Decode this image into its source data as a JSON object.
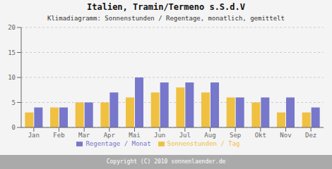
{
  "chart_data": {
    "type": "bar",
    "title": "Italien, Tramin/Termeno s.S.d.V",
    "subtitle": "Klimadiagramm: Sonnenstunden / Regentage, monatlich, gemittelt",
    "annotations": [
      "Copyright (C) 2010 sonnenlaender.de"
    ],
    "categories": [
      "Jan",
      "Feb",
      "Mar",
      "Apr",
      "Mai",
      "Jun",
      "Jul",
      "Aug",
      "Sep",
      "Okt",
      "Nov",
      "Dez"
    ],
    "series": [
      {
        "name": "Sonnenstunden / Tag",
        "color": "#f0c040",
        "values": [
          3,
          4,
          5,
          5,
          6,
          7,
          8,
          7,
          6,
          5,
          3,
          3
        ]
      },
      {
        "name": "Regentage / Monat",
        "color": "#7777cc",
        "values": [
          4,
          4,
          5,
          7,
          10,
          9,
          9,
          9,
          6,
          6,
          6,
          4
        ]
      }
    ],
    "ylim": [
      0,
      20
    ],
    "yticks": [
      0,
      5,
      10,
      15,
      20
    ],
    "grid": true,
    "legend": "bottom"
  }
}
